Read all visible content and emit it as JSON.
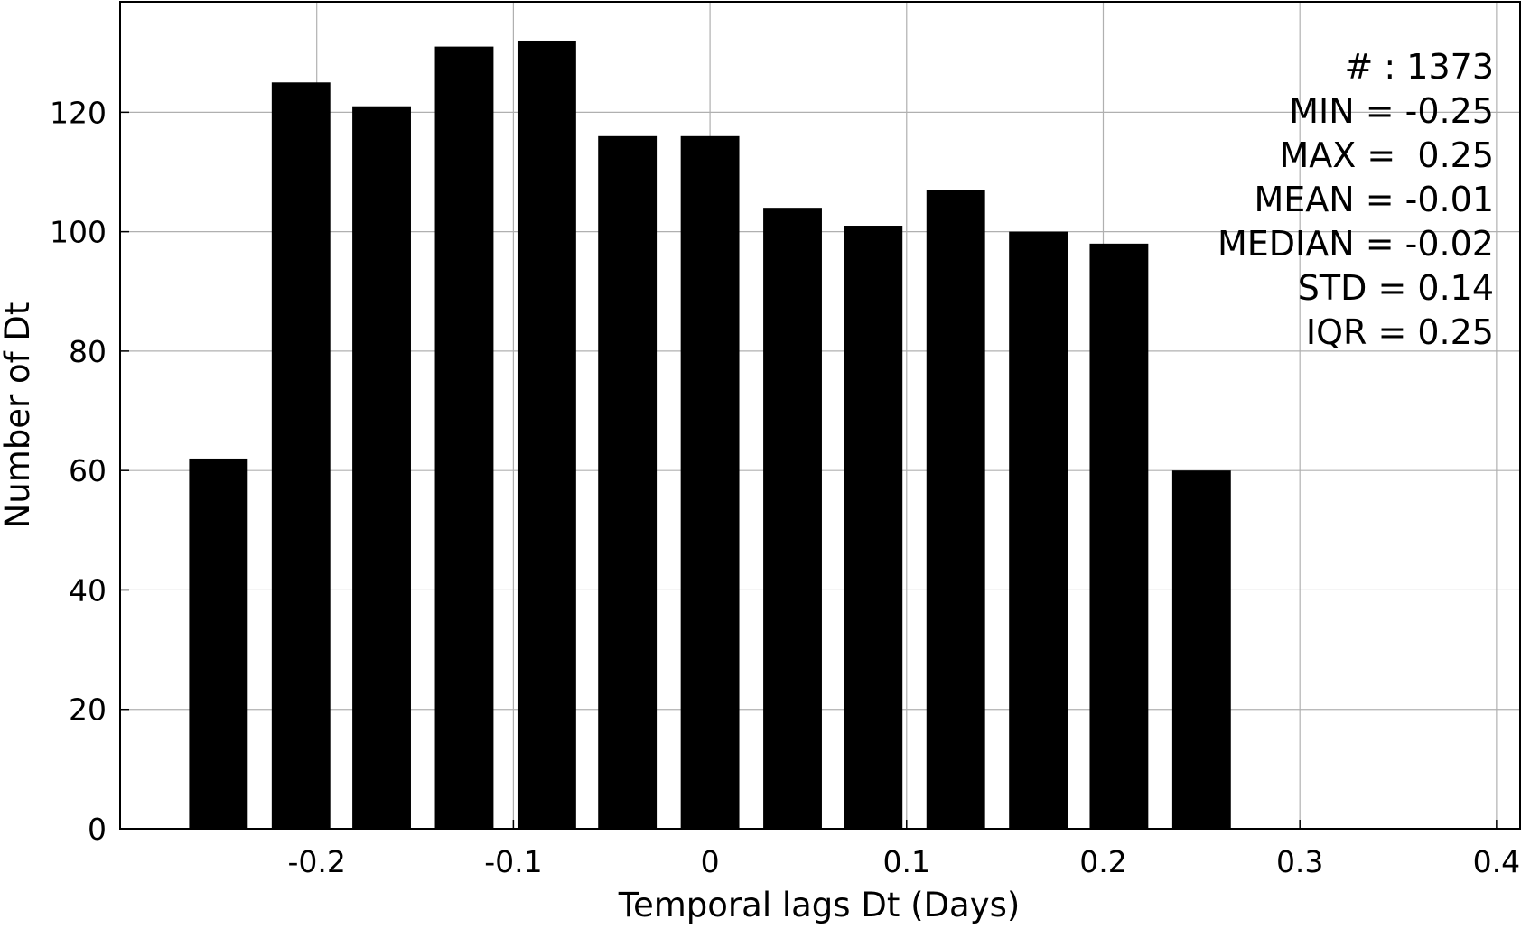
{
  "chart_data": {
    "type": "bar",
    "x": [
      -0.25,
      -0.208,
      -0.167,
      -0.125,
      -0.083,
      -0.042,
      0.0,
      0.042,
      0.083,
      0.125,
      0.167,
      0.208,
      0.25
    ],
    "values": [
      62,
      125,
      121,
      131,
      132,
      116,
      116,
      104,
      101,
      107,
      100,
      98,
      60
    ],
    "bar_width": 0.0298,
    "xlim": [
      -0.3,
      0.412
    ],
    "ylim": [
      0,
      138.5
    ],
    "xticks": [
      -0.2,
      -0.1,
      0,
      0.1,
      0.2,
      0.3,
      0.4
    ],
    "xtick_labels": [
      "-0.2",
      "-0.1",
      "0",
      "0.1",
      "0.2",
      "0.3",
      "0.4"
    ],
    "yticks": [
      0,
      20,
      40,
      60,
      80,
      100,
      120
    ],
    "ytick_labels": [
      "0",
      "20",
      "40",
      "60",
      "80",
      "100",
      "120"
    ],
    "xlabel": "Temporal lags Dt (Days)",
    "ylabel": "Number of Dt",
    "grid": true,
    "bar_color": "#000000",
    "annotations": [
      "# : 1373",
      "MIN = -0.25",
      "MAX =  0.25",
      "MEAN = -0.01",
      "MEDIAN = -0.02",
      "STD = 0.14",
      "IQR = 0.25"
    ],
    "annotation_placement": "top-right"
  }
}
